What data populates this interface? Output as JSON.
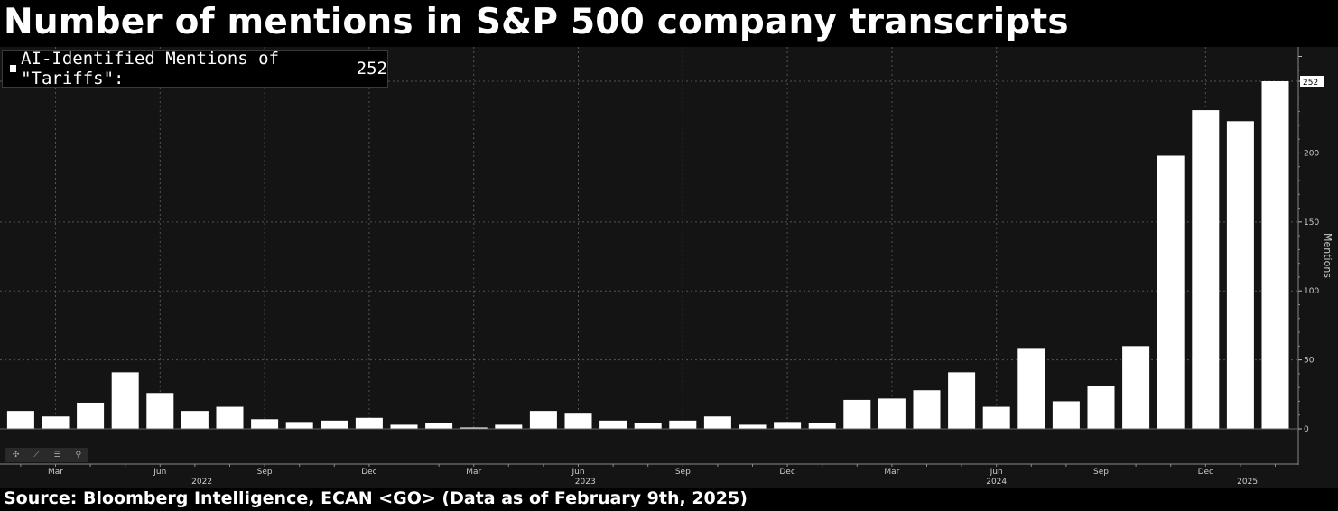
{
  "title": "Number of mentions in S&P 500 company transcripts",
  "source": "Source: Bloomberg Intelligence, ECAN <GO> (Data as of February 9th, 2025)",
  "legend": {
    "label": "AI-Identified Mentions of \"Tariffs\":",
    "value": "252"
  },
  "toolbar": {
    "icons": [
      "crosshair-icon",
      "draw-icon",
      "list-icon",
      "zoom-icon"
    ],
    "glyphs": [
      "✣",
      "⟋",
      "☰",
      "⚲"
    ]
  },
  "colors": {
    "background": "#000000",
    "plot": "#141414",
    "bar": "#ffffff",
    "grid": "#555555"
  },
  "chart_data": {
    "type": "bar",
    "title": "Number of mentions in S&P 500 company transcripts",
    "ylabel": "Mentions",
    "ylim": [
      0,
      270
    ],
    "yticks": [
      0,
      50,
      100,
      150,
      200,
      252
    ],
    "ytick_labels": [
      "0",
      "50",
      "100",
      "150",
      "200",
      "252"
    ],
    "last_value_label": "252",
    "x_month_labels": [
      {
        "index": 1,
        "label": "Mar"
      },
      {
        "index": 4,
        "label": "Jun"
      },
      {
        "index": 7,
        "label": "Sep"
      },
      {
        "index": 10,
        "label": "Dec"
      },
      {
        "index": 13,
        "label": "Mar"
      },
      {
        "index": 16,
        "label": "Jun"
      },
      {
        "index": 19,
        "label": "Sep"
      },
      {
        "index": 22,
        "label": "Dec"
      },
      {
        "index": 25,
        "label": "Mar"
      },
      {
        "index": 28,
        "label": "Jun"
      },
      {
        "index": 31,
        "label": "Sep"
      },
      {
        "index": 34,
        "label": "Dec"
      }
    ],
    "x_year_labels": [
      {
        "index": 5.2,
        "label": "2022"
      },
      {
        "index": 16.2,
        "label": "2023"
      },
      {
        "index": 28.0,
        "label": "2024"
      },
      {
        "index": 35.2,
        "label": "2025"
      }
    ],
    "series": [
      {
        "name": "AI-Identified Mentions of \"Tariffs\"",
        "values": [
          13,
          9,
          19,
          41,
          26,
          13,
          16,
          7,
          5,
          6,
          8,
          3,
          4,
          1,
          3,
          13,
          11,
          6,
          4,
          6,
          9,
          3,
          5,
          4,
          21,
          22,
          28,
          41,
          16,
          58,
          20,
          31,
          60,
          198,
          231,
          223,
          252
        ]
      }
    ]
  }
}
